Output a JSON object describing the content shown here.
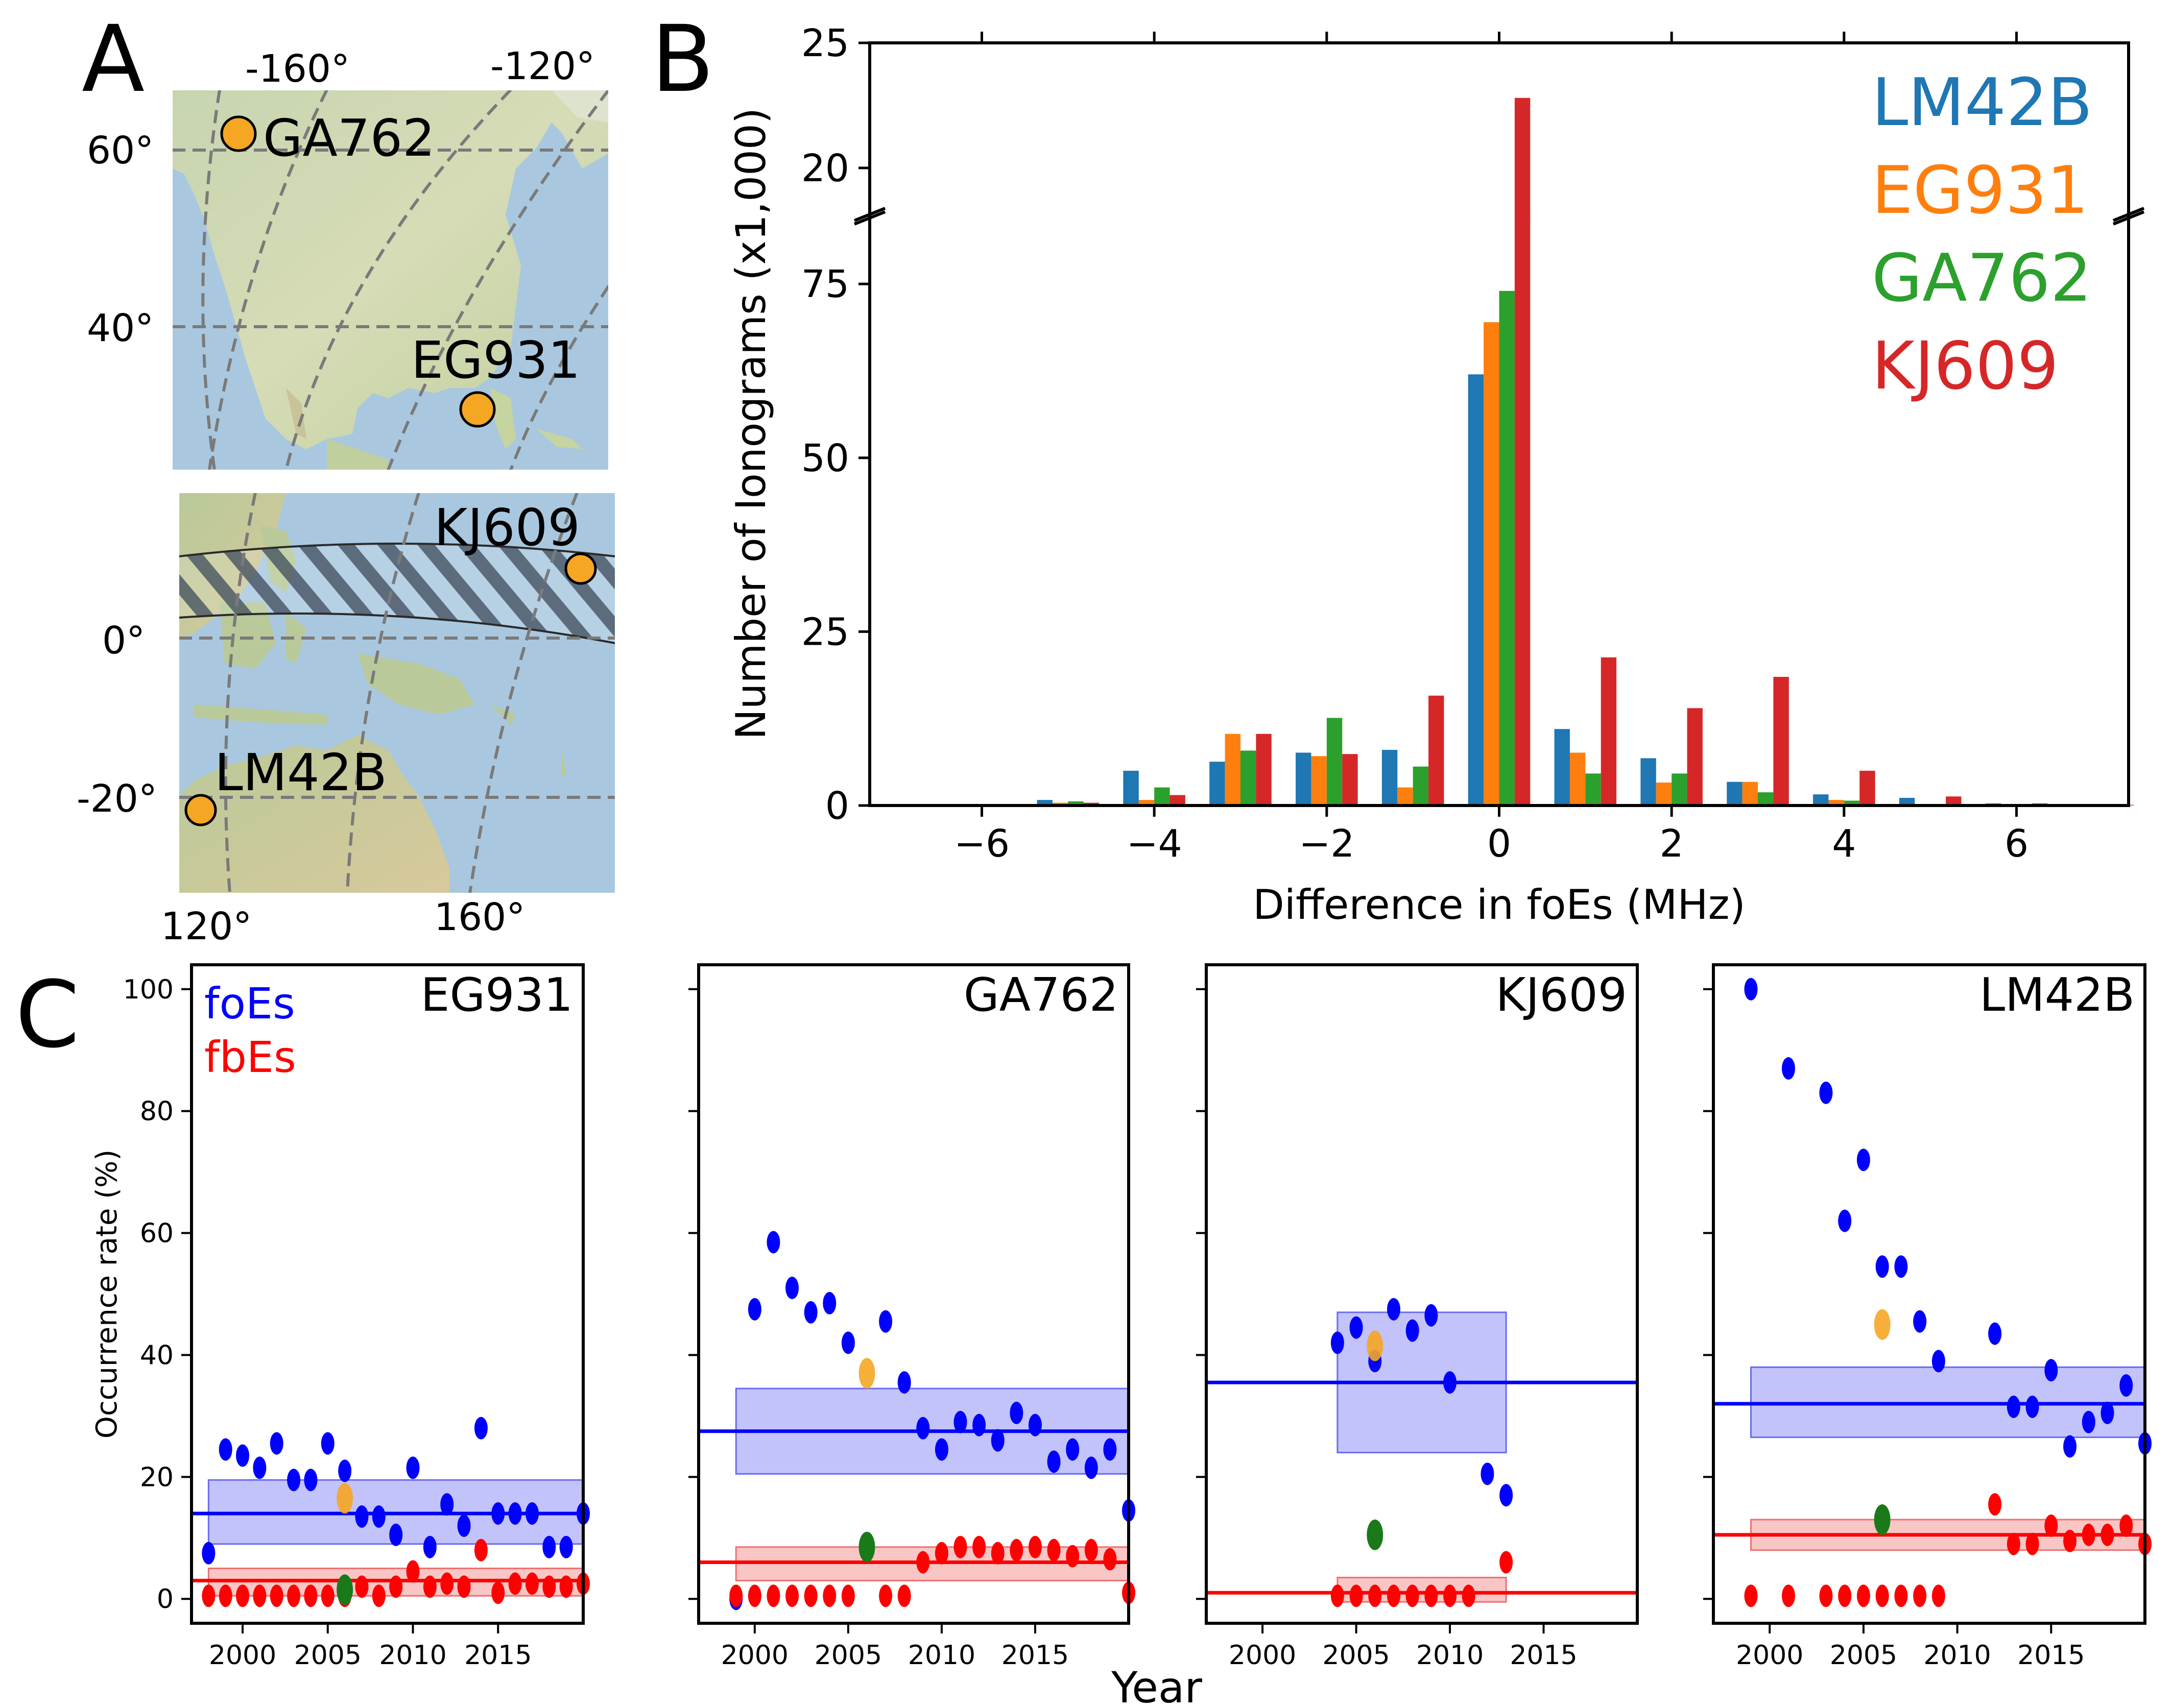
{
  "panel_letters": {
    "a": "A",
    "b": "B",
    "c": "C"
  },
  "panel_a": {
    "top_map": {
      "lon_labels": [
        "-160°",
        "-120°"
      ],
      "lat_labels": [
        "60°",
        "40°"
      ],
      "stations": [
        "GA762",
        "EG931"
      ]
    },
    "bottom_map": {
      "lat_labels": [
        "0°",
        "-20°"
      ],
      "lon_labels": [
        "120°",
        "160°"
      ],
      "stations": [
        "KJ609",
        "LM42B"
      ]
    }
  },
  "colors": {
    "LM42B": "#1f77b4",
    "EG931": "#ff7f0e",
    "GA762": "#2ca02c",
    "KJ609": "#d62728",
    "foEs": "#0000ff",
    "fbEs": "#ff0000",
    "station_marker": "#f5a623",
    "ocean": "#a9c8df",
    "land": "#c9d9a8"
  },
  "chart_data": [
    {
      "panel": "B",
      "type": "bar",
      "xlabel": "Difference in foEs (MHz)",
      "ylabel": "Number of Ionograms (x1,000)",
      "x_ticks": [
        "−6",
        "−4",
        "−2",
        "0",
        "2",
        "4",
        "6"
      ],
      "y_ticks_lower": [
        "0",
        "25",
        "50",
        "75"
      ],
      "y_ticks_upper": [
        "20",
        "25"
      ],
      "ylim_lower": [
        0,
        85
      ],
      "ylim_upper": [
        18,
        25
      ],
      "broken_axis": true,
      "legend": [
        "LM42B",
        "EG931",
        "GA762",
        "KJ609"
      ],
      "legend_placement": "top-right",
      "categories": [
        -6,
        -5,
        -4,
        -3,
        -2,
        -1,
        0,
        1,
        2,
        3,
        4,
        5,
        6,
        7
      ],
      "series": [
        {
          "name": "LM42B",
          "values": [
            0.1,
            0.8,
            5.0,
            6.3,
            7.6,
            8.0,
            62,
            11.0,
            6.8,
            3.4,
            1.6,
            1.1,
            0.3,
            0.1
          ]
        },
        {
          "name": "EG931",
          "values": [
            0.1,
            0.4,
            0.8,
            10.3,
            7.1,
            2.6,
            69.5,
            7.6,
            3.3,
            3.4,
            0.8,
            0.2,
            0.1,
            0.0
          ]
        },
        {
          "name": "GA762",
          "values": [
            0.1,
            0.6,
            2.6,
            7.9,
            12.6,
            5.6,
            74,
            4.6,
            4.6,
            1.9,
            0.7,
            0.1,
            0.1,
            0.0
          ]
        },
        {
          "name": "KJ609",
          "values": [
            0.1,
            0.4,
            1.5,
            10.3,
            7.4,
            15.8,
            22800,
            21.3,
            14.0,
            18.5,
            5.0,
            1.3,
            0.3,
            0.1
          ]
        }
      ]
    },
    {
      "panel": "C",
      "type": "scatter",
      "ylabel": "Occurrence rate (%)",
      "xlabel": "Year",
      "y_ticks": [
        "0",
        "20",
        "40",
        "60",
        "80",
        "100"
      ],
      "x_ticks": [
        "2000",
        "2005",
        "2010",
        "2015"
      ],
      "xlim": [
        1997,
        2020
      ],
      "ylim": [
        -4,
        104
      ],
      "legend": [
        "foEs",
        "fbEs"
      ],
      "subplots": [
        {
          "station": "EG931",
          "foEs": [
            [
              1998,
              7.5
            ],
            [
              1999,
              24.5
            ],
            [
              2000,
              23.5
            ],
            [
              2001,
              21.5
            ],
            [
              2002,
              25.5
            ],
            [
              2003,
              19.5
            ],
            [
              2004,
              19.5
            ],
            [
              2005,
              25.5
            ],
            [
              2006,
              21
            ],
            [
              2007,
              13.5
            ],
            [
              2008,
              13.5
            ],
            [
              2009,
              10.5
            ],
            [
              2010,
              21.5
            ],
            [
              2011,
              8.5
            ],
            [
              2012,
              15.5
            ],
            [
              2013,
              12
            ],
            [
              2014,
              28
            ],
            [
              2015,
              14
            ],
            [
              2016,
              14
            ],
            [
              2017,
              14
            ],
            [
              2018,
              8.5
            ],
            [
              2019,
              8.5
            ],
            [
              2020,
              14
            ]
          ],
          "fbEs": [
            [
              1998,
              0.5
            ],
            [
              1999,
              0.5
            ],
            [
              2000,
              0.5
            ],
            [
              2001,
              0.5
            ],
            [
              2002,
              0.5
            ],
            [
              2003,
              0.5
            ],
            [
              2004,
              0.5
            ],
            [
              2005,
              0.5
            ],
            [
              2006,
              0.5
            ],
            [
              2007,
              2
            ],
            [
              2008,
              0.5
            ],
            [
              2009,
              2
            ],
            [
              2010,
              4.5
            ],
            [
              2011,
              2
            ],
            [
              2012,
              2.5
            ],
            [
              2013,
              2
            ],
            [
              2014,
              8
            ],
            [
              2015,
              1
            ],
            [
              2016,
              2.5
            ],
            [
              2017,
              2.5
            ],
            [
              2018,
              2
            ],
            [
              2019,
              2
            ],
            [
              2020,
              2.5
            ]
          ],
          "highlight_foEs": [
            2006,
            16.5
          ],
          "highlight_fbEs": [
            2006,
            1.5
          ],
          "foEs_mean": 14,
          "foEs_band": [
            9,
            19.5
          ],
          "foEs_band_x": [
            1998,
            2020
          ],
          "fbEs_mean": 3,
          "fbEs_band": [
            0.5,
            5
          ],
          "fbEs_band_x": [
            1998,
            2020
          ]
        },
        {
          "station": "GA762",
          "foEs": [
            [
              1999,
              0
            ],
            [
              2000,
              47.5
            ],
            [
              2001,
              58.5
            ],
            [
              2002,
              51
            ],
            [
              2003,
              47
            ],
            [
              2004,
              48.5
            ],
            [
              2005,
              42
            ],
            [
              2007,
              45.5
            ],
            [
              2008,
              35.5
            ],
            [
              2009,
              28
            ],
            [
              2010,
              24.5
            ],
            [
              2011,
              29
            ],
            [
              2012,
              28.5
            ],
            [
              2013,
              26
            ],
            [
              2014,
              30.5
            ],
            [
              2015,
              28.5
            ],
            [
              2016,
              22.5
            ],
            [
              2017,
              24.5
            ],
            [
              2018,
              21.5
            ],
            [
              2019,
              24.5
            ],
            [
              2020,
              14.5
            ]
          ],
          "fbEs": [
            [
              1999,
              0.5
            ],
            [
              2000,
              0.5
            ],
            [
              2001,
              0.5
            ],
            [
              2002,
              0.5
            ],
            [
              2003,
              0.5
            ],
            [
              2004,
              0.5
            ],
            [
              2005,
              0.5
            ],
            [
              2007,
              0.5
            ],
            [
              2008,
              0.5
            ],
            [
              2009,
              6
            ],
            [
              2010,
              7.5
            ],
            [
              2011,
              8.5
            ],
            [
              2012,
              8.5
            ],
            [
              2013,
              7.5
            ],
            [
              2014,
              8
            ],
            [
              2015,
              8.5
            ],
            [
              2016,
              8
            ],
            [
              2017,
              7
            ],
            [
              2018,
              8
            ],
            [
              2019,
              6.5
            ],
            [
              2020,
              1
            ]
          ],
          "highlight_foEs": [
            2006,
            37
          ],
          "highlight_fbEs": [
            2006,
            8.5
          ],
          "foEs_mean": 27.5,
          "foEs_band": [
            20.5,
            34.5
          ],
          "foEs_band_x": [
            1999,
            2020
          ],
          "fbEs_mean": 6,
          "fbEs_band": [
            3,
            8.5
          ],
          "fbEs_band_x": [
            1999,
            2020
          ]
        },
        {
          "station": "KJ609",
          "foEs": [
            [
              2004,
              42
            ],
            [
              2005,
              44.5
            ],
            [
              2006,
              39
            ],
            [
              2007,
              47.5
            ],
            [
              2008,
              44
            ],
            [
              2009,
              46.5
            ],
            [
              2010,
              35.5
            ],
            [
              2012,
              20.5
            ],
            [
              2013,
              17
            ]
          ],
          "fbEs": [
            [
              2004,
              0.5
            ],
            [
              2005,
              0.5
            ],
            [
              2006,
              0.5
            ],
            [
              2007,
              0.5
            ],
            [
              2008,
              0.5
            ],
            [
              2009,
              0.5
            ],
            [
              2010,
              0.5
            ],
            [
              2011,
              0.5
            ],
            [
              2013,
              6
            ]
          ],
          "highlight_foEs": [
            2006,
            41.5
          ],
          "highlight_fbEs": [
            2006,
            10.5
          ],
          "foEs_mean": 35.5,
          "foEs_band": [
            24,
            47
          ],
          "foEs_band_x": [
            2004,
            2013
          ],
          "fbEs_mean": 1,
          "fbEs_band": [
            -0.5,
            3.5
          ],
          "fbEs_band_x": [
            2004,
            2013
          ]
        },
        {
          "station": "LM42B",
          "foEs": [
            [
              1999,
              100
            ],
            [
              2001,
              87
            ],
            [
              2003,
              83
            ],
            [
              2004,
              62
            ],
            [
              2005,
              72
            ],
            [
              2006,
              54.5
            ],
            [
              2007,
              54.5
            ],
            [
              2008,
              45.5
            ],
            [
              2009,
              39
            ],
            [
              2012,
              43.5
            ],
            [
              2013,
              31.5
            ],
            [
              2014,
              31.5
            ],
            [
              2015,
              37.5
            ],
            [
              2016,
              25
            ],
            [
              2017,
              29
            ],
            [
              2018,
              30.5
            ],
            [
              2019,
              35
            ],
            [
              2020,
              25.5
            ]
          ],
          "fbEs": [
            [
              1999,
              0.5
            ],
            [
              2001,
              0.5
            ],
            [
              2003,
              0.5
            ],
            [
              2004,
              0.5
            ],
            [
              2005,
              0.5
            ],
            [
              2006,
              0.5
            ],
            [
              2007,
              0.5
            ],
            [
              2008,
              0.5
            ],
            [
              2009,
              0.5
            ],
            [
              2012,
              15.5
            ],
            [
              2013,
              9
            ],
            [
              2014,
              9
            ],
            [
              2015,
              12
            ],
            [
              2016,
              9.5
            ],
            [
              2017,
              10.5
            ],
            [
              2018,
              10.5
            ],
            [
              2019,
              12
            ],
            [
              2020,
              9
            ]
          ],
          "highlight_foEs": [
            2006,
            45
          ],
          "highlight_fbEs": [
            2006,
            13
          ],
          "foEs_mean": 32,
          "foEs_band": [
            26.5,
            38
          ],
          "foEs_band_x": [
            1999,
            2020
          ],
          "fbEs_mean": 10.5,
          "fbEs_band": [
            8,
            13
          ],
          "fbEs_band_x": [
            1999,
            2020
          ]
        }
      ]
    }
  ]
}
